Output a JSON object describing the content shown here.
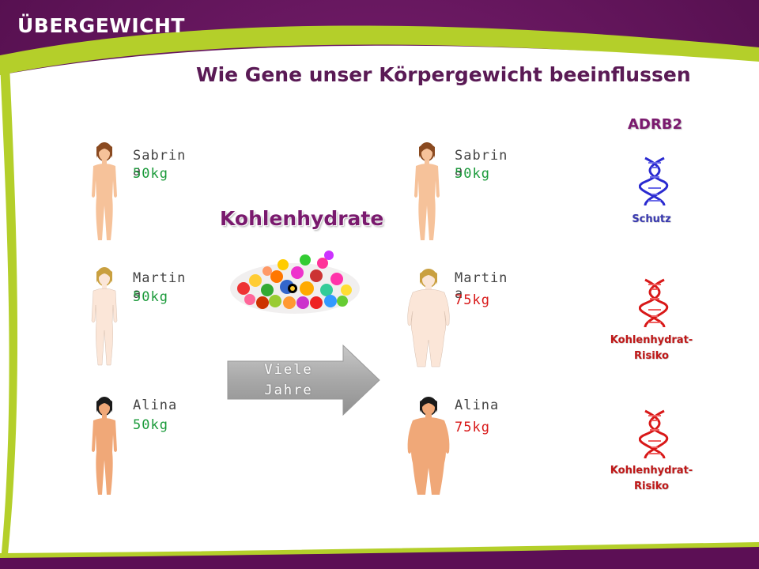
{
  "slide": {
    "label": "ÜBERGEWICHT",
    "title": "Wie Gene unser Körpergewicht beeinflussen"
  },
  "colors": {
    "header_purple": "#5c0f55",
    "accent_green": "#b4cf2a",
    "weight_normal": "#1a9a3a",
    "weight_over": "#d81818"
  },
  "before": [
    {
      "name": "Sabrina",
      "weight": "50kg"
    },
    {
      "name": "Martina",
      "weight": "50kg"
    },
    {
      "name": "Alina",
      "weight": "50kg"
    }
  ],
  "after": [
    {
      "name": "Sabrina",
      "weight": "50kg"
    },
    {
      "name": "Martina",
      "weight": "75kg"
    },
    {
      "name": "Alina",
      "weight": "75kg"
    }
  ],
  "center": {
    "food_title": "Kohlenhydrate",
    "arrow_line1": "Viele",
    "arrow_line2": "Jahre"
  },
  "gene": {
    "title": "ADRB2",
    "variants": [
      {
        "line1": "Schutz",
        "line2": "",
        "icon": "dna-blue-icon"
      },
      {
        "line1": "Kohlenhydrat-",
        "line2": "Risiko",
        "icon": "dna-red-icon"
      },
      {
        "line1": "Kohlenhydrat-",
        "line2": "Risiko",
        "icon": "dna-red-icon"
      }
    ]
  }
}
